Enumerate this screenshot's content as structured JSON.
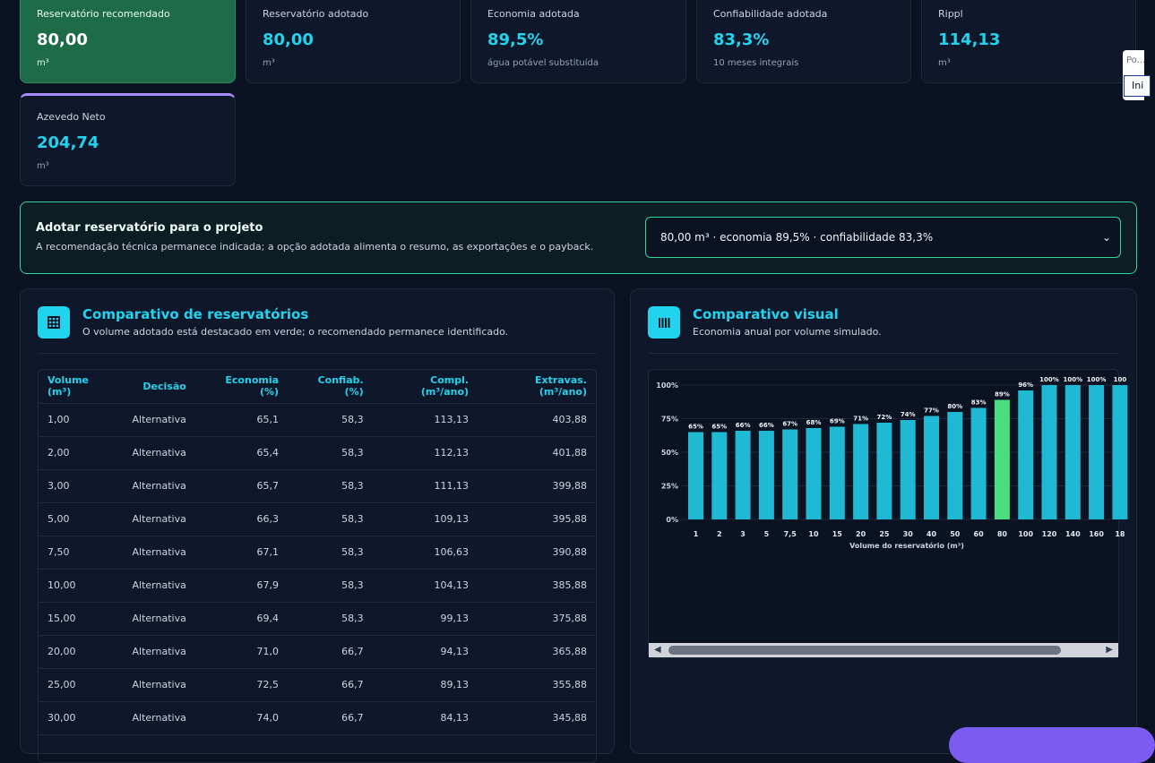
{
  "kpis": [
    {
      "label": "Reservatório recomendado",
      "value": "80,00",
      "unit": "m³"
    },
    {
      "label": "Reservatório adotado",
      "value": "80,00",
      "unit": "m³"
    },
    {
      "label": "Economia adotada",
      "value": "89,5%",
      "unit": "água potável substituída"
    },
    {
      "label": "Confiabilidade adotada",
      "value": "83,3%",
      "unit": "10 meses integrais"
    },
    {
      "label": "Rippl",
      "value": "114,13",
      "unit": "m³"
    },
    {
      "label": "Azevedo Neto",
      "value": "204,74",
      "unit": "m³"
    }
  ],
  "adopt": {
    "title": "Adotar reservatório para o projeto",
    "subtitle": "A recomendação técnica permanece indicada; a opção adotada alimenta o resumo, as exportações e o payback.",
    "selected": "80,00 m³ · economia 89,5% · confiabilidade 83,3%"
  },
  "table_panel": {
    "title": "Comparativo de reservatórios",
    "subtitle": "O volume adotado está destacado em verde; o recomendado permanece identificado.",
    "headers": [
      "Volume (m³)",
      "Decisão",
      "Economia (%)",
      "Confiab. (%)",
      "Compl. (m³/ano)",
      "Extravas. (m³/ano)"
    ],
    "rows": [
      [
        "1,00",
        "Alternativa",
        "65,1",
        "58,3",
        "113,13",
        "403,88"
      ],
      [
        "2,00",
        "Alternativa",
        "65,4",
        "58,3",
        "112,13",
        "401,88"
      ],
      [
        "3,00",
        "Alternativa",
        "65,7",
        "58,3",
        "111,13",
        "399,88"
      ],
      [
        "5,00",
        "Alternativa",
        "66,3",
        "58,3",
        "109,13",
        "395,88"
      ],
      [
        "7,50",
        "Alternativa",
        "67,1",
        "58,3",
        "106,63",
        "390,88"
      ],
      [
        "10,00",
        "Alternativa",
        "67,9",
        "58,3",
        "104,13",
        "385,88"
      ],
      [
        "15,00",
        "Alternativa",
        "69,4",
        "58,3",
        "99,13",
        "375,88"
      ],
      [
        "20,00",
        "Alternativa",
        "71,0",
        "66,7",
        "94,13",
        "365,88"
      ],
      [
        "25,00",
        "Alternativa",
        "72,5",
        "66,7",
        "89,13",
        "355,88"
      ],
      [
        "30,00",
        "Alternativa",
        "74,0",
        "66,7",
        "84,13",
        "345,88"
      ]
    ]
  },
  "chart_panel": {
    "title": "Comparativo visual",
    "subtitle": "Economia anual por volume simulado."
  },
  "side_fragment": {
    "placeholder": "Po...",
    "button": "Ini"
  },
  "chart_data": {
    "type": "bar",
    "xlabel": "Volume do reservatório (m³)",
    "ylabel": "",
    "ylim": [
      0,
      100
    ],
    "yticks": [
      "0%",
      "25%",
      "50%",
      "75%",
      "100%"
    ],
    "categories": [
      "1",
      "2",
      "3",
      "5",
      "7,5",
      "10",
      "15",
      "20",
      "25",
      "30",
      "40",
      "50",
      "60",
      "80",
      "100",
      "120",
      "140",
      "160",
      "18"
    ],
    "values": [
      65,
      65,
      66,
      66,
      67,
      68,
      69,
      71,
      72,
      74,
      77,
      80,
      83,
      89,
      96,
      100,
      100,
      100,
      100
    ],
    "labels": [
      "65%",
      "65%",
      "66%",
      "66%",
      "67%",
      "68%",
      "69%",
      "71%",
      "72%",
      "74%",
      "77%",
      "80%",
      "83%",
      "89%",
      "96%",
      "100%",
      "100%",
      "100%",
      "100"
    ],
    "highlight_index": 13,
    "colors": {
      "bar": "#1fb9d4",
      "highlight": "#4ade80",
      "grid": "#1e293b"
    }
  }
}
